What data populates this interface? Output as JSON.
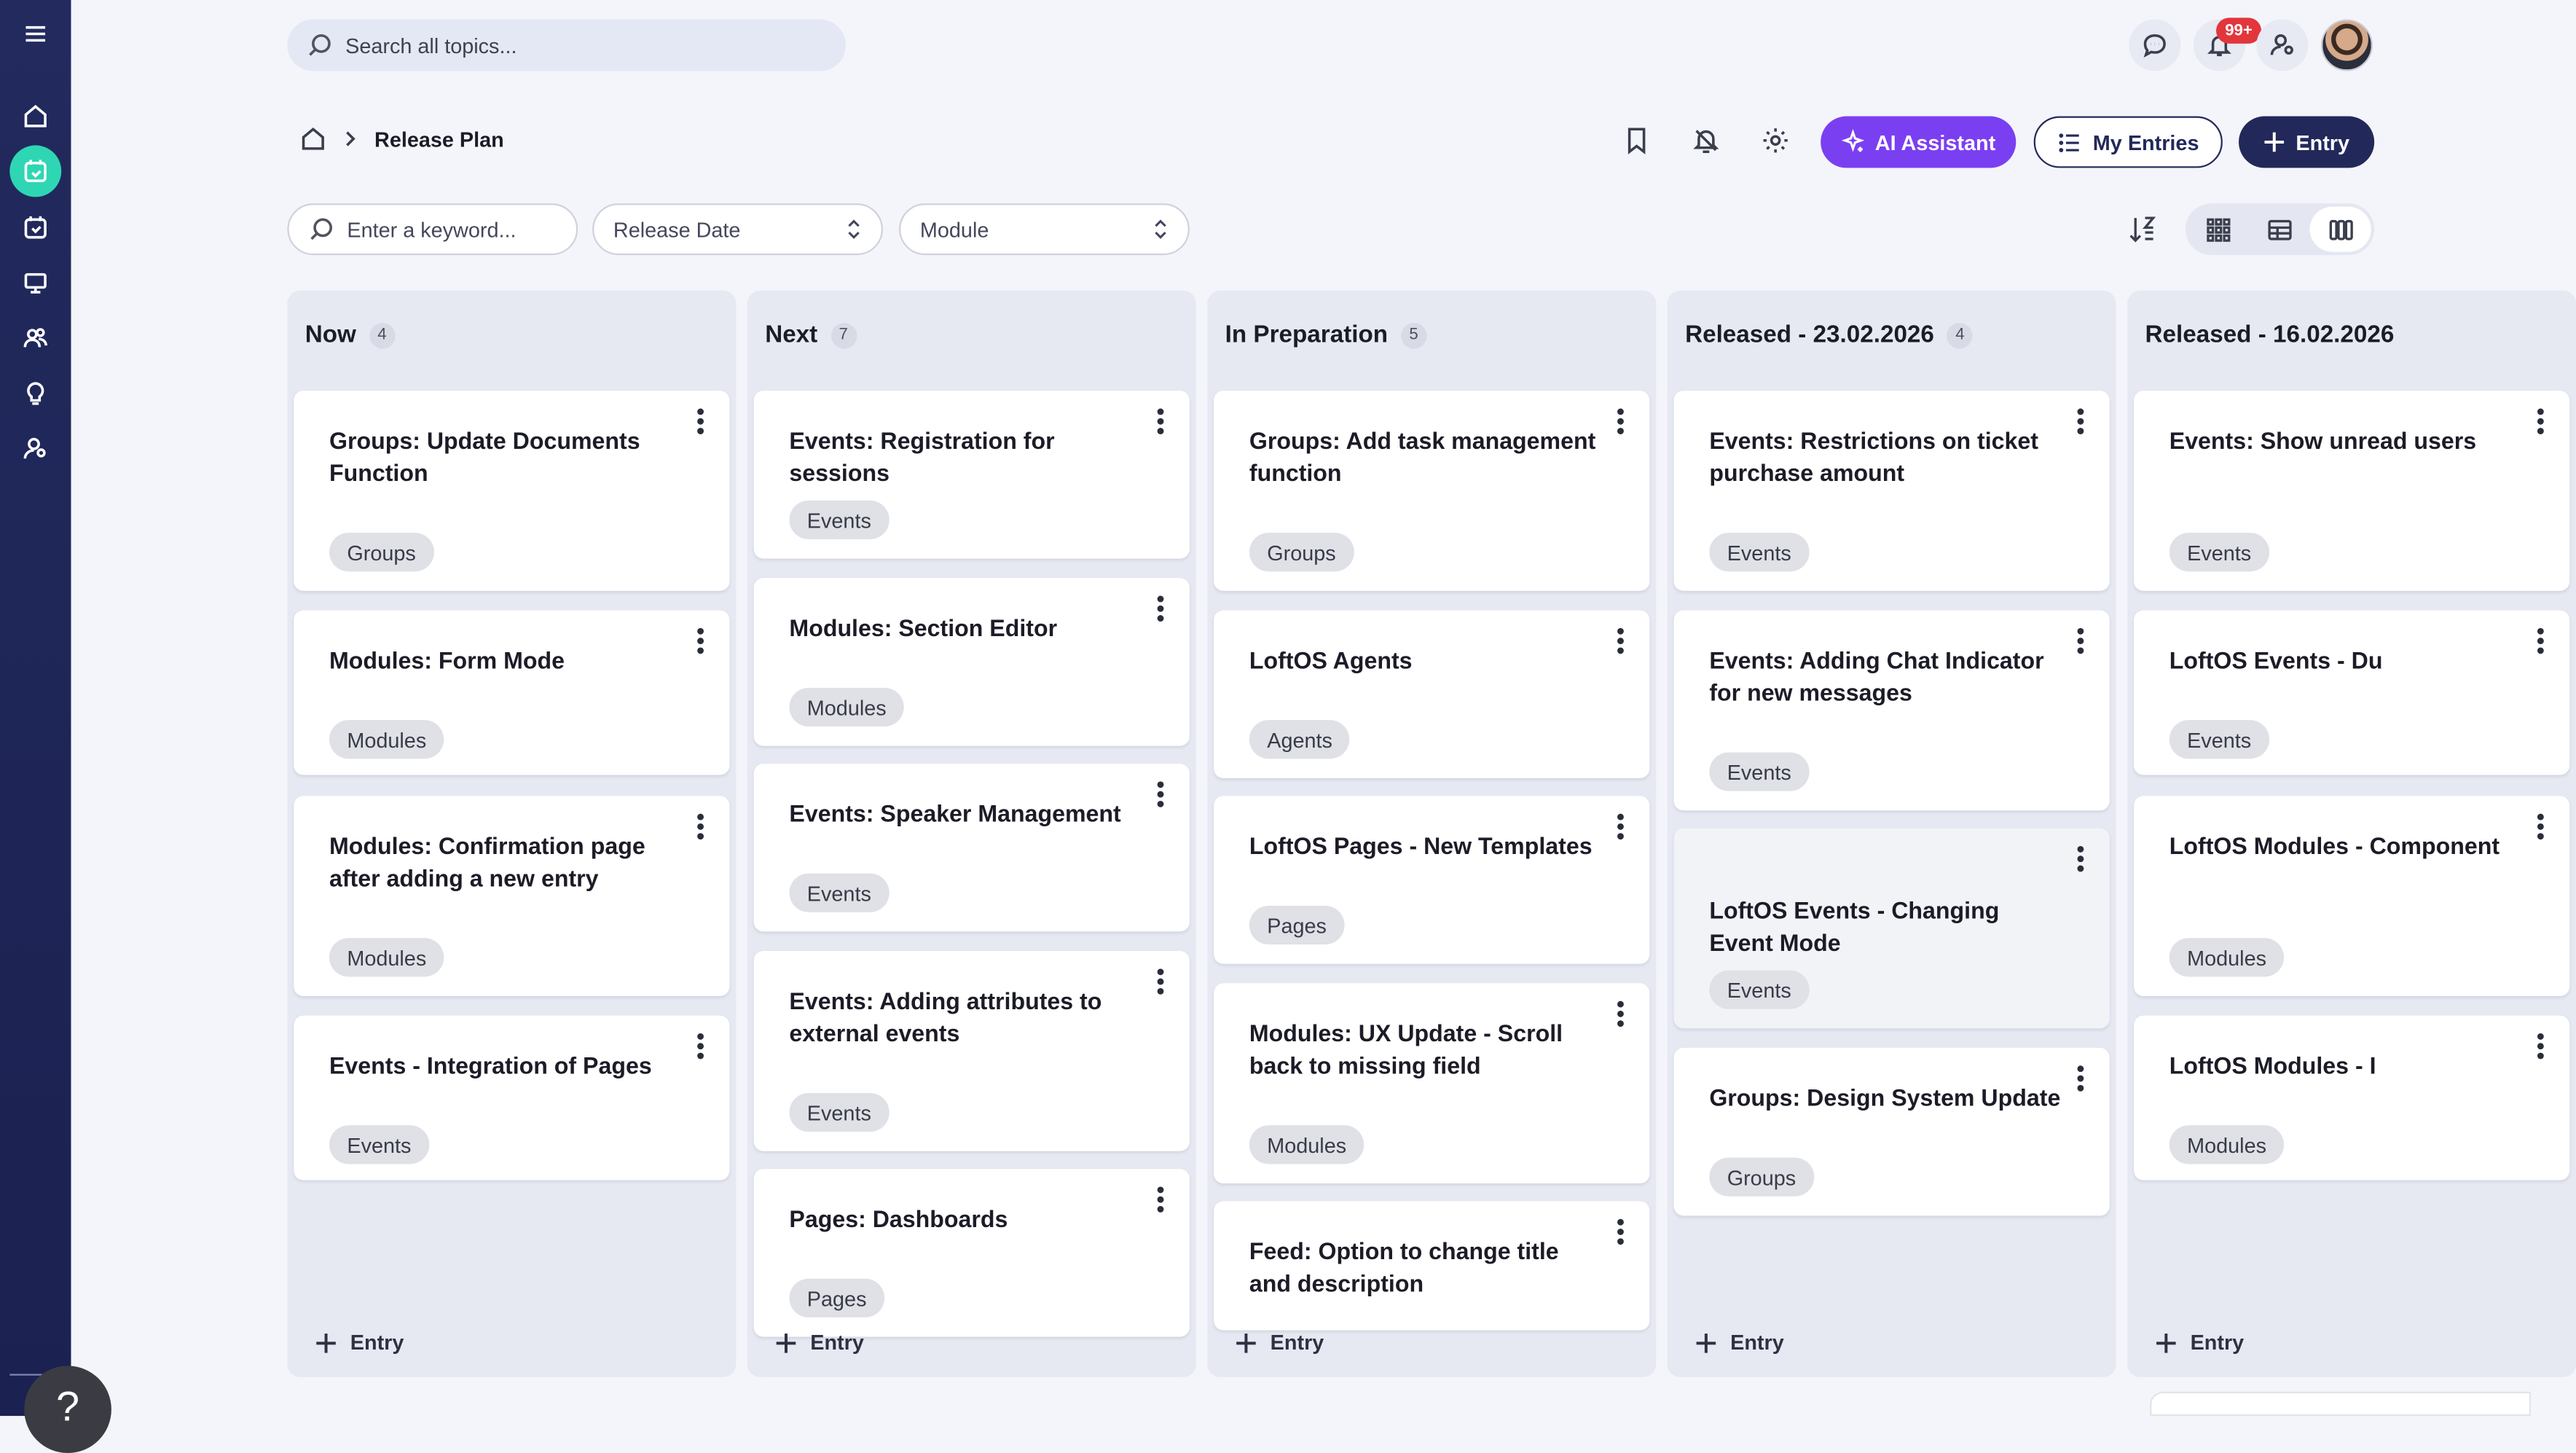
{
  "search": {
    "placeholder": "Search all topics..."
  },
  "notifications": {
    "badge": "99+"
  },
  "breadcrumb": {
    "title": "Release Plan"
  },
  "header": {
    "ai_label": "AI Assistant",
    "my_entries_label": "My Entries",
    "entry_label": "Entry"
  },
  "filters": {
    "keyword_placeholder": "Enter a keyword...",
    "release_date": "Release Date",
    "module": "Module"
  },
  "help": {
    "label": "?"
  },
  "columns": [
    {
      "title": "Now",
      "count": "4",
      "add_label": "Entry",
      "cards": [
        {
          "title": "Groups: Update Documents Function",
          "tag": "Groups"
        },
        {
          "title": "Modules: Form Mode",
          "tag": "Modules"
        },
        {
          "title": "Modules: Confirmation page after adding a new entry",
          "tag": "Modules"
        },
        {
          "title": "Events - Integration of Pages",
          "tag": "Events"
        }
      ]
    },
    {
      "title": "Next",
      "count": "7",
      "add_label": "Entry",
      "cards": [
        {
          "title": "Events: Registration for sessions",
          "tag": "Events"
        },
        {
          "title": "Modules: Section Editor",
          "tag": "Modules"
        },
        {
          "title": "Events: Speaker Management",
          "tag": "Events"
        },
        {
          "title": "Events: Adding attributes to external events",
          "tag": "Events"
        },
        {
          "title": "Pages: Dashboards",
          "tag": "Pages"
        }
      ]
    },
    {
      "title": "In Preparation",
      "count": "5",
      "add_label": "Entry",
      "cards": [
        {
          "title": "Groups: Add task management function",
          "tag": "Groups"
        },
        {
          "title": "LoftOS Agents",
          "tag": "Agents"
        },
        {
          "title": "LoftOS Pages - New Templates",
          "tag": "Pages"
        },
        {
          "title": "Modules: UX Update - Scroll back to missing field",
          "tag": "Modules"
        },
        {
          "title": "Feed: Option to change title and description",
          "tag": ""
        }
      ]
    },
    {
      "title": "Released - 23.02.2026",
      "count": "4",
      "add_label": "Entry",
      "cards": [
        {
          "title": "Events: Restrictions on ticket purchase amount",
          "tag": "Events"
        },
        {
          "title": "Events: Adding Chat Indicator for new messages",
          "tag": "Events"
        },
        {
          "title": "LoftOS Events - Changing Event Mode",
          "tag": "Events"
        },
        {
          "title": "Groups: Design System Update",
          "tag": "Groups"
        }
      ]
    },
    {
      "title": "Released - 16.02.2026",
      "count": "",
      "add_label": "Entry",
      "cards": [
        {
          "title": "Events: Show unread users",
          "tag": "Events"
        },
        {
          "title": "LoftOS Events - Du",
          "tag": "Events"
        },
        {
          "title": "LoftOS Modules - Component",
          "tag": "Modules"
        },
        {
          "title": "LoftOS Modules - I",
          "tag": "Modules"
        }
      ]
    }
  ],
  "colors": {
    "sidebar": "#222a5e",
    "sidebar_active": "#2fd6b4",
    "ai_button": "#7b3ff2",
    "primary": "#22295a",
    "badge": "#e2363c"
  }
}
